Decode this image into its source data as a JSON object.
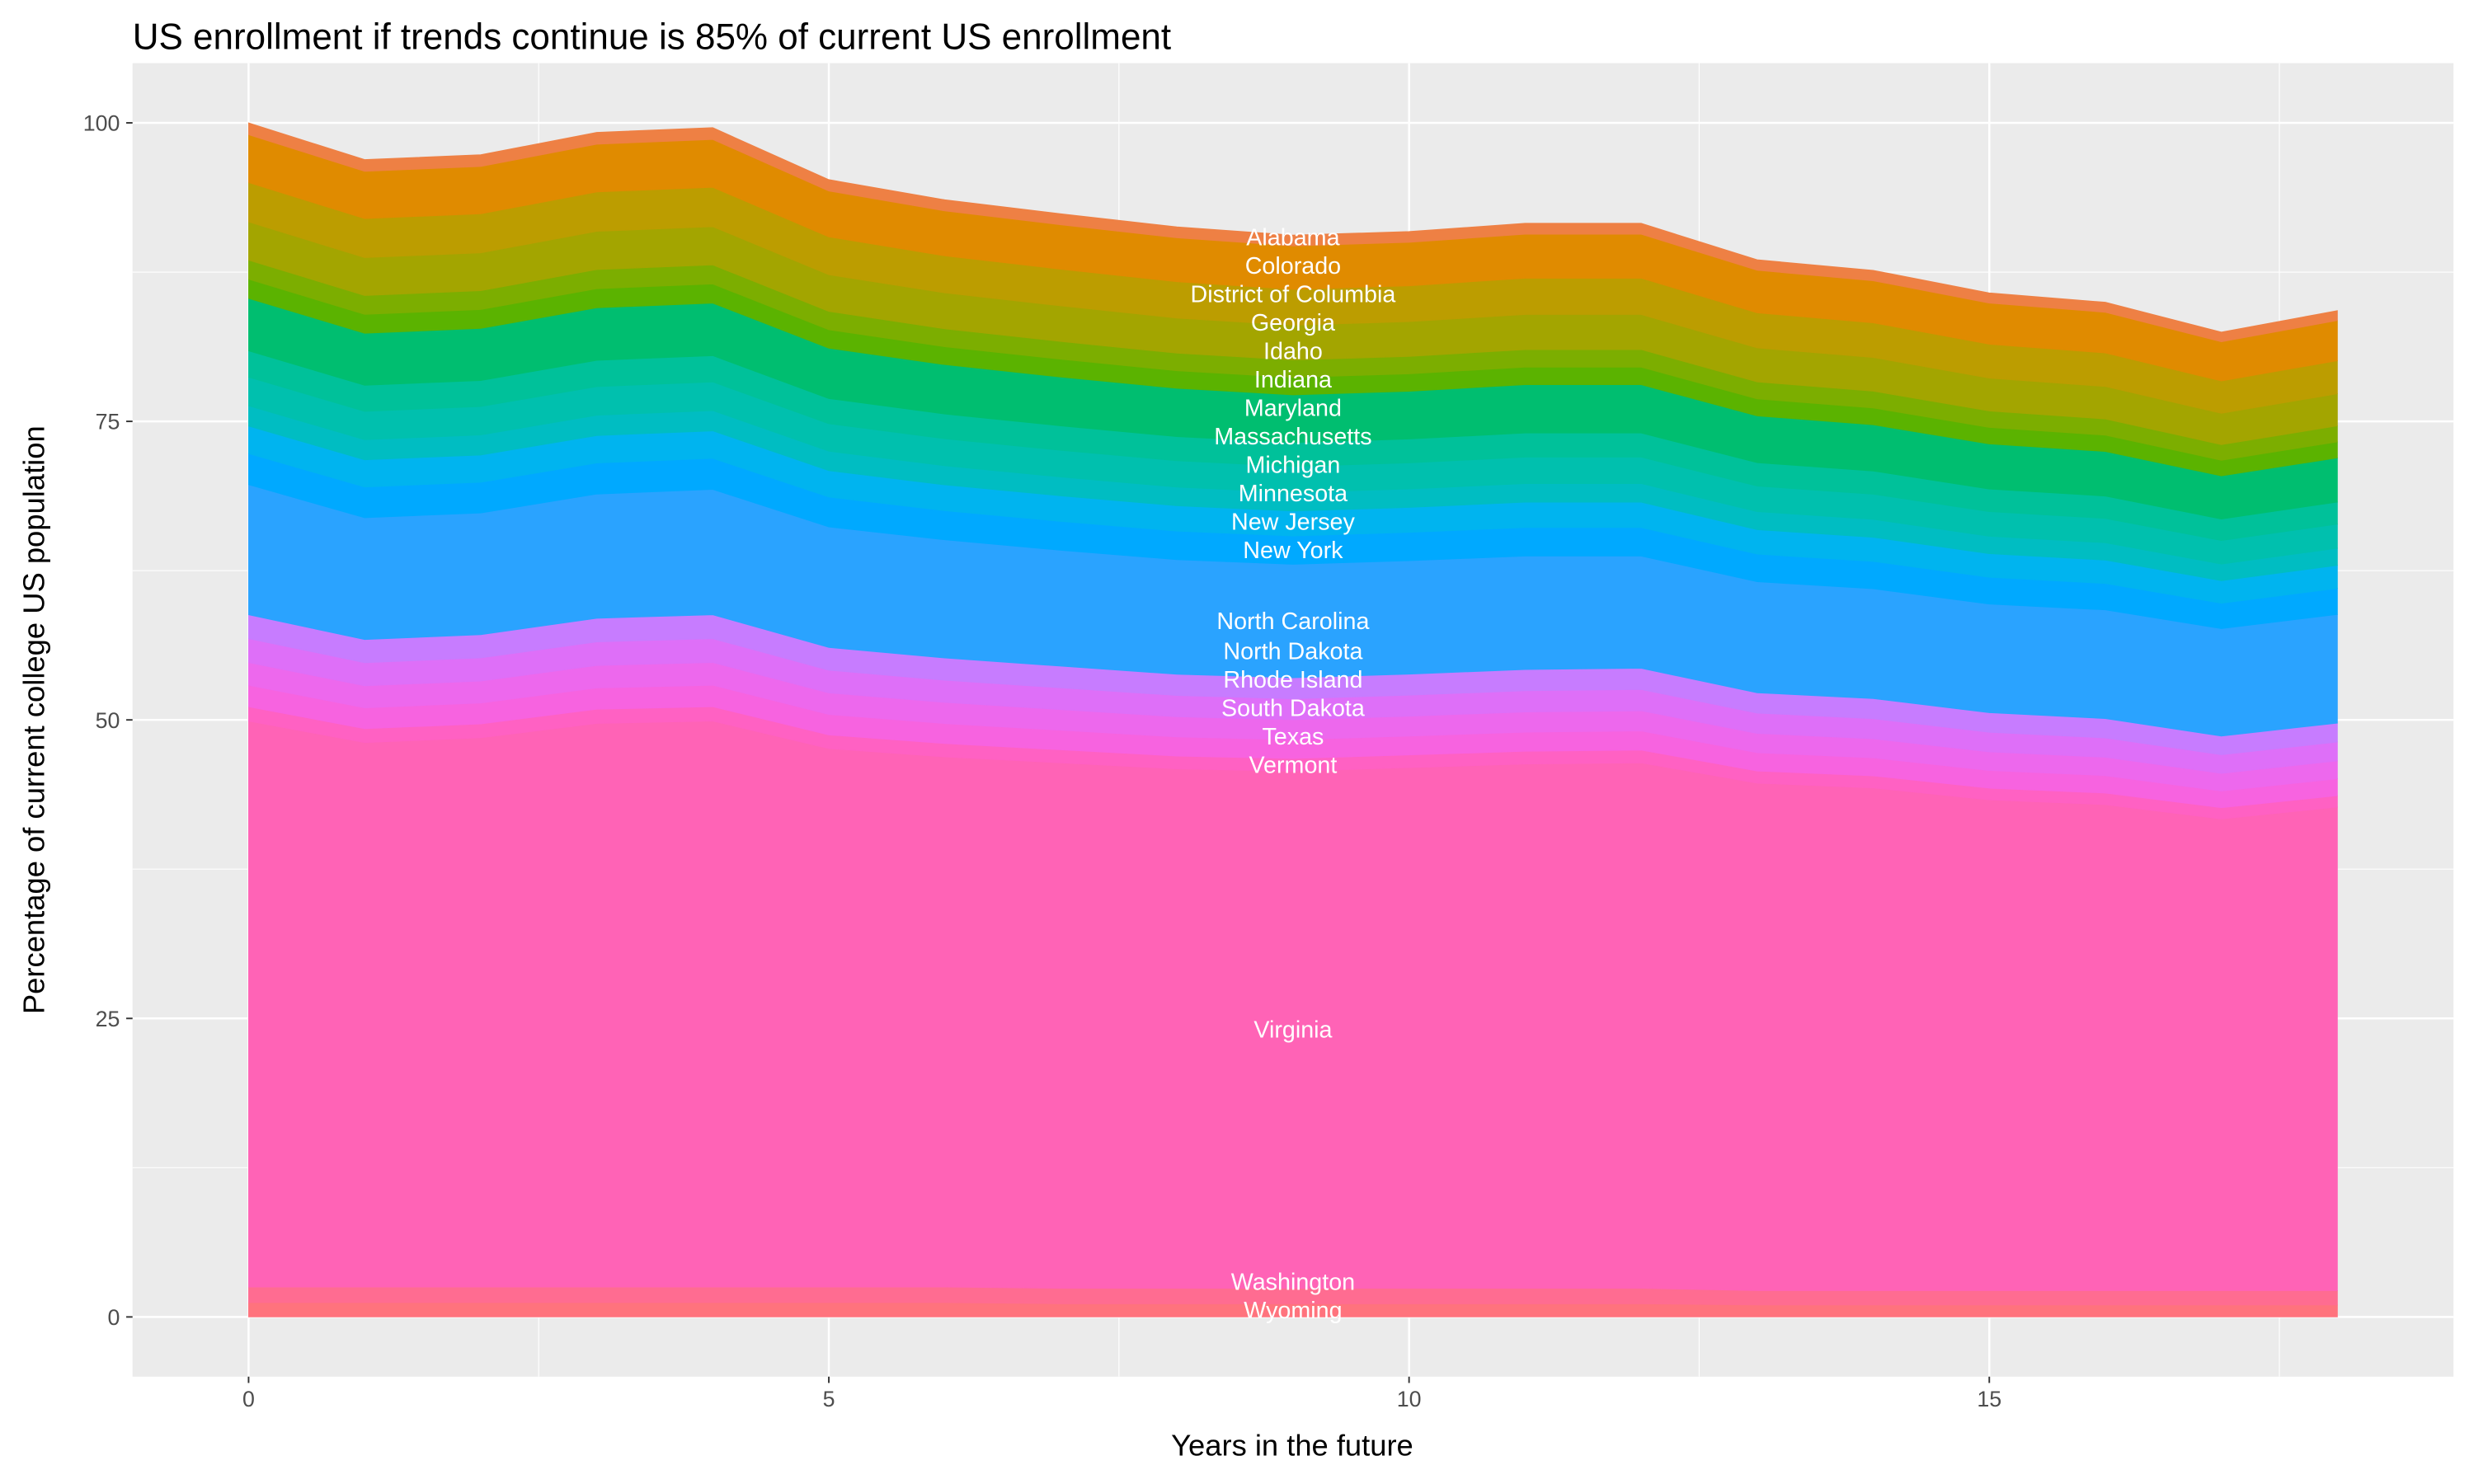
{
  "chart_data": {
    "type": "area",
    "stacked": true,
    "title": "US enrollment if trends continue is 85% of current US enrollment",
    "xlabel": "Years in the future",
    "ylabel": "Percentage of current college US population",
    "xlim": [
      -1,
      19
    ],
    "ylim": [
      -5,
      105
    ],
    "xticks": [
      0,
      5,
      10,
      15
    ],
    "yticks": [
      0,
      25,
      50,
      75,
      100
    ],
    "grid": true,
    "legend": "none",
    "label_x": 9,
    "x": [
      0,
      1,
      2,
      3,
      4,
      5,
      6,
      7,
      8,
      9,
      10,
      11,
      12,
      13,
      14,
      15,
      16,
      17,
      18
    ],
    "series": [
      {
        "name": "Wyoming",
        "color": "#FF737D",
        "values": [
          1.2,
          1.2,
          1.2,
          1.2,
          1.2,
          1.2,
          1.2,
          1.1,
          1.1,
          1.1,
          1.1,
          1.1,
          1.1,
          1.0,
          1.0,
          1.0,
          1.0,
          1.0,
          1.0
        ]
      },
      {
        "name": "Washington",
        "color": "#FF6C91",
        "values": [
          1.3,
          1.3,
          1.3,
          1.3,
          1.3,
          1.3,
          1.3,
          1.3,
          1.3,
          1.3,
          1.3,
          1.3,
          1.3,
          1.2,
          1.2,
          1.2,
          1.2,
          1.2,
          1.2
        ]
      },
      {
        "name": "Virginia",
        "color": "#FF63B6",
        "values": [
          47.4,
          45.6,
          46.0,
          47.2,
          47.4,
          45.1,
          44.4,
          44.0,
          43.5,
          43.3,
          43.6,
          43.9,
          44.0,
          42.5,
          42.1,
          41.1,
          40.7,
          39.5,
          40.5
        ]
      },
      {
        "name": "Vermont",
        "color": "#FF61C3",
        "values": [
          1.2,
          1.16,
          1.16,
          1.19,
          1.2,
          1.14,
          1.12,
          1.09,
          1.07,
          1.06,
          1.06,
          1.07,
          1.07,
          1.02,
          1.01,
          0.98,
          0.97,
          0.94,
          0.95
        ]
      },
      {
        "name": "Texas",
        "color": "#F763E0",
        "values": [
          1.8,
          1.75,
          1.75,
          1.78,
          1.8,
          1.71,
          1.67,
          1.64,
          1.6,
          1.58,
          1.58,
          1.6,
          1.6,
          1.53,
          1.51,
          1.48,
          1.46,
          1.4,
          1.42
        ]
      },
      {
        "name": "South Dakota",
        "color": "#ED68ED",
        "values": [
          1.9,
          1.84,
          1.84,
          1.88,
          1.9,
          1.81,
          1.77,
          1.73,
          1.69,
          1.67,
          1.67,
          1.69,
          1.69,
          1.62,
          1.6,
          1.56,
          1.54,
          1.48,
          1.5
        ]
      },
      {
        "name": "Rhode Island",
        "color": "#DE6FF8",
        "values": [
          2.0,
          1.94,
          1.94,
          1.98,
          2.0,
          1.9,
          1.86,
          1.82,
          1.78,
          1.76,
          1.76,
          1.78,
          1.78,
          1.7,
          1.68,
          1.64,
          1.62,
          1.56,
          1.58
        ]
      },
      {
        "name": "North Dakota",
        "color": "#C77CFF",
        "values": [
          2.0,
          1.94,
          1.94,
          1.98,
          2.0,
          1.9,
          1.86,
          1.82,
          1.78,
          1.76,
          1.76,
          1.78,
          1.78,
          1.7,
          1.68,
          1.64,
          1.62,
          1.56,
          1.58
        ]
      },
      {
        "name": "North Carolina",
        "color": "#2AA3FF",
        "values": [
          10.9,
          10.2,
          10.2,
          10.4,
          10.5,
          10.1,
          9.9,
          9.7,
          9.6,
          9.5,
          9.5,
          9.5,
          9.4,
          9.3,
          9.2,
          9.1,
          9.1,
          9.0,
          9.1
        ]
      },
      {
        "name": "New York",
        "color": "#00A9FF",
        "values": [
          2.6,
          2.57,
          2.57,
          2.6,
          2.6,
          2.5,
          2.44,
          2.42,
          2.39,
          2.37,
          2.37,
          2.39,
          2.39,
          2.31,
          2.29,
          2.24,
          2.21,
          2.13,
          2.18
        ]
      },
      {
        "name": "New Jersey",
        "color": "#00B4EF",
        "values": [
          2.3,
          2.28,
          2.28,
          2.3,
          2.3,
          2.21,
          2.16,
          2.14,
          2.12,
          2.09,
          2.09,
          2.12,
          2.12,
          2.05,
          2.02,
          1.98,
          1.96,
          1.89,
          1.93
        ]
      },
      {
        "name": "Minnesota",
        "color": "#00BDC2",
        "values": [
          1.7,
          1.68,
          1.68,
          1.7,
          1.7,
          1.63,
          1.6,
          1.58,
          1.56,
          1.55,
          1.55,
          1.56,
          1.56,
          1.51,
          1.5,
          1.46,
          1.45,
          1.39,
          1.43
        ]
      },
      {
        "name": "Michigan",
        "color": "#00C0AE",
        "values": [
          2.4,
          2.38,
          2.38,
          2.4,
          2.4,
          2.3,
          2.26,
          2.23,
          2.21,
          2.18,
          2.18,
          2.21,
          2.21,
          2.14,
          2.11,
          2.06,
          2.04,
          1.97,
          2.02
        ]
      },
      {
        "name": "Massachusetts",
        "color": "#00C19A",
        "values": [
          2.2,
          2.18,
          2.18,
          2.2,
          2.2,
          2.11,
          2.07,
          2.05,
          2.02,
          2.0,
          2.0,
          2.02,
          2.02,
          1.96,
          1.94,
          1.89,
          1.87,
          1.8,
          1.85
        ]
      },
      {
        "name": "Maryland",
        "color": "#00BE70",
        "values": [
          4.4,
          4.36,
          4.36,
          4.4,
          4.4,
          4.22,
          4.14,
          4.09,
          4.05,
          4.0,
          4.0,
          4.05,
          4.05,
          3.92,
          3.87,
          3.78,
          3.74,
          3.61,
          3.7
        ]
      },
      {
        "name": "Indiana",
        "color": "#5BB300",
        "values": [
          1.6,
          1.58,
          1.58,
          1.6,
          1.6,
          1.54,
          1.5,
          1.49,
          1.47,
          1.46,
          1.46,
          1.47,
          1.47,
          1.42,
          1.41,
          1.38,
          1.36,
          1.31,
          1.34
        ]
      },
      {
        "name": "Idaho",
        "color": "#7CAE00",
        "values": [
          1.6,
          1.58,
          1.58,
          1.6,
          1.6,
          1.54,
          1.5,
          1.49,
          1.47,
          1.46,
          1.46,
          1.47,
          1.47,
          1.42,
          1.41,
          1.38,
          1.36,
          1.31,
          1.34
        ]
      },
      {
        "name": "Georgia",
        "color": "#A3A500",
        "values": [
          3.2,
          3.17,
          3.17,
          3.2,
          3.2,
          3.07,
          3.01,
          2.98,
          2.94,
          2.91,
          2.91,
          2.94,
          2.94,
          2.85,
          2.82,
          2.75,
          2.72,
          2.62,
          2.69
        ]
      },
      {
        "name": "District of Columbia",
        "color": "#BC9D00",
        "values": [
          3.3,
          3.27,
          3.27,
          3.3,
          3.3,
          3.17,
          3.1,
          3.07,
          3.04,
          3.0,
          3.0,
          3.04,
          3.04,
          2.94,
          2.9,
          2.84,
          2.81,
          2.71,
          2.77
        ]
      },
      {
        "name": "Colorado",
        "color": "#E08B00",
        "values": [
          4.0,
          3.96,
          3.96,
          4.0,
          4.0,
          3.84,
          3.76,
          3.72,
          3.68,
          3.64,
          3.64,
          3.68,
          3.68,
          3.56,
          3.52,
          3.44,
          3.4,
          3.28,
          3.36
        ]
      },
      {
        "name": "Alabama",
        "color": "#EE8044",
        "values": [
          1.0,
          0.99,
          0.99,
          1.0,
          1.0,
          0.96,
          0.94,
          0.93,
          0.92,
          0.91,
          0.91,
          0.92,
          0.92,
          0.89,
          0.88,
          0.86,
          0.85,
          0.82,
          0.84
        ]
      }
    ]
  }
}
